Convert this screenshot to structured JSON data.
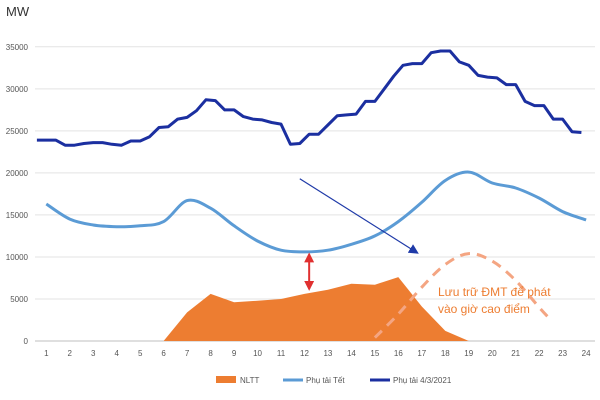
{
  "chart_data": {
    "type": "line",
    "unit_label": "MW",
    "x": [
      1,
      2,
      3,
      4,
      5,
      6,
      7,
      8,
      9,
      10,
      11,
      12,
      13,
      14,
      15,
      16,
      17,
      18,
      19,
      20,
      21,
      22,
      23,
      24
    ],
    "y_ticks": [
      "0",
      "5000",
      "10000",
      "15000",
      "20000",
      "25000",
      "30000",
      "35000"
    ],
    "ylim": [
      0,
      37000
    ],
    "grid": true,
    "series": [
      {
        "name": "Phụ tải 4/3/2021",
        "color": "#1b2fa0",
        "values": [
          [
            0.6,
            23900
          ],
          [
            1,
            23900
          ],
          [
            1.4,
            23900
          ],
          [
            1.8,
            23300
          ],
          [
            2.2,
            23300
          ],
          [
            2.6,
            23500
          ],
          [
            3,
            23600
          ],
          [
            3.4,
            23600
          ],
          [
            3.8,
            23400
          ],
          [
            4.2,
            23300
          ],
          [
            4.6,
            23800
          ],
          [
            5,
            23800
          ],
          [
            5.4,
            24300
          ],
          [
            5.8,
            25400
          ],
          [
            6.2,
            25500
          ],
          [
            6.6,
            26400
          ],
          [
            7,
            26600
          ],
          [
            7.4,
            27400
          ],
          [
            7.8,
            28700
          ],
          [
            8.2,
            28600
          ],
          [
            8.6,
            27500
          ],
          [
            9,
            27500
          ],
          [
            9.4,
            26700
          ],
          [
            9.8,
            26400
          ],
          [
            10.2,
            26300
          ],
          [
            10.6,
            26000
          ],
          [
            11,
            25800
          ],
          [
            11.4,
            23400
          ],
          [
            11.8,
            23500
          ],
          [
            12.2,
            24600
          ],
          [
            12.6,
            24600
          ],
          [
            13,
            25700
          ],
          [
            13.4,
            26800
          ],
          [
            13.8,
            26900
          ],
          [
            14.2,
            27000
          ],
          [
            14.6,
            28500
          ],
          [
            15,
            28500
          ],
          [
            15.4,
            30000
          ],
          [
            15.8,
            31500
          ],
          [
            16.2,
            32800
          ],
          [
            16.6,
            33000
          ],
          [
            17,
            33000
          ],
          [
            17.4,
            34300
          ],
          [
            17.8,
            34500
          ],
          [
            18.2,
            34500
          ],
          [
            18.6,
            33200
          ],
          [
            19,
            32800
          ],
          [
            19.4,
            31600
          ],
          [
            19.8,
            31400
          ],
          [
            20.2,
            31300
          ],
          [
            20.6,
            30500
          ],
          [
            21,
            30500
          ],
          [
            21.4,
            28500
          ],
          [
            21.8,
            28000
          ],
          [
            22.2,
            28000
          ],
          [
            22.6,
            26400
          ],
          [
            23,
            26400
          ],
          [
            23.4,
            24900
          ],
          [
            23.8,
            24800
          ]
        ]
      },
      {
        "name": "Phụ tải Tết",
        "color": "#5b9bd5",
        "values": [
          [
            1,
            16300
          ],
          [
            2,
            14500
          ],
          [
            3,
            13800
          ],
          [
            4,
            13600
          ],
          [
            5,
            13700
          ],
          [
            6,
            14200
          ],
          [
            7,
            16700
          ],
          [
            8,
            15800
          ],
          [
            9,
            13700
          ],
          [
            10,
            11900
          ],
          [
            11,
            10800
          ],
          [
            12,
            10600
          ],
          [
            13,
            10800
          ],
          [
            14,
            11500
          ],
          [
            15,
            12500
          ],
          [
            16,
            14200
          ],
          [
            17,
            16500
          ],
          [
            18,
            19100
          ],
          [
            19,
            20100
          ],
          [
            20,
            18800
          ],
          [
            21,
            18200
          ],
          [
            22,
            17000
          ],
          [
            23,
            15400
          ],
          [
            24,
            14400
          ]
        ]
      },
      {
        "name": "NLTT",
        "color": "#ed7d31",
        "type": "area",
        "values": [
          [
            6,
            0
          ],
          [
            7,
            3400
          ],
          [
            8,
            5600
          ],
          [
            9,
            4600
          ],
          [
            10,
            4800
          ],
          [
            11,
            5000
          ],
          [
            12,
            5600
          ],
          [
            13,
            6100
          ],
          [
            14,
            6800
          ],
          [
            15,
            6700
          ],
          [
            16,
            7600
          ],
          [
            17,
            4100
          ],
          [
            18,
            1200
          ],
          [
            19,
            0
          ]
        ]
      }
    ],
    "legend_order": [
      "NLTT",
      "Phụ tải Tết",
      "Phụ tải 4/3/2021"
    ],
    "legend_position": "bottom",
    "annotation": {
      "text_line1": "Lưu trữ ĐMT để phát",
      "text_line2": "vào giờ cao điểm",
      "color": "#ed7d31",
      "dashed_curve": [
        [
          15,
          400
        ],
        [
          16,
          3200
        ],
        [
          17,
          6400
        ],
        [
          18,
          9100
        ],
        [
          19,
          10400
        ],
        [
          20,
          9500
        ],
        [
          21,
          7200
        ],
        [
          22,
          4000
        ],
        [
          22.5,
          2500
        ]
      ],
      "arrow_from": [
        11.8,
        19300
      ],
      "arrow_to": [
        16.8,
        10500
      ],
      "double_arrow_x": 12.2,
      "double_arrow_y": [
        6200,
        10300
      ],
      "arrow_color": "#1f3aa8",
      "double_arrow_color": "#e03030"
    }
  }
}
